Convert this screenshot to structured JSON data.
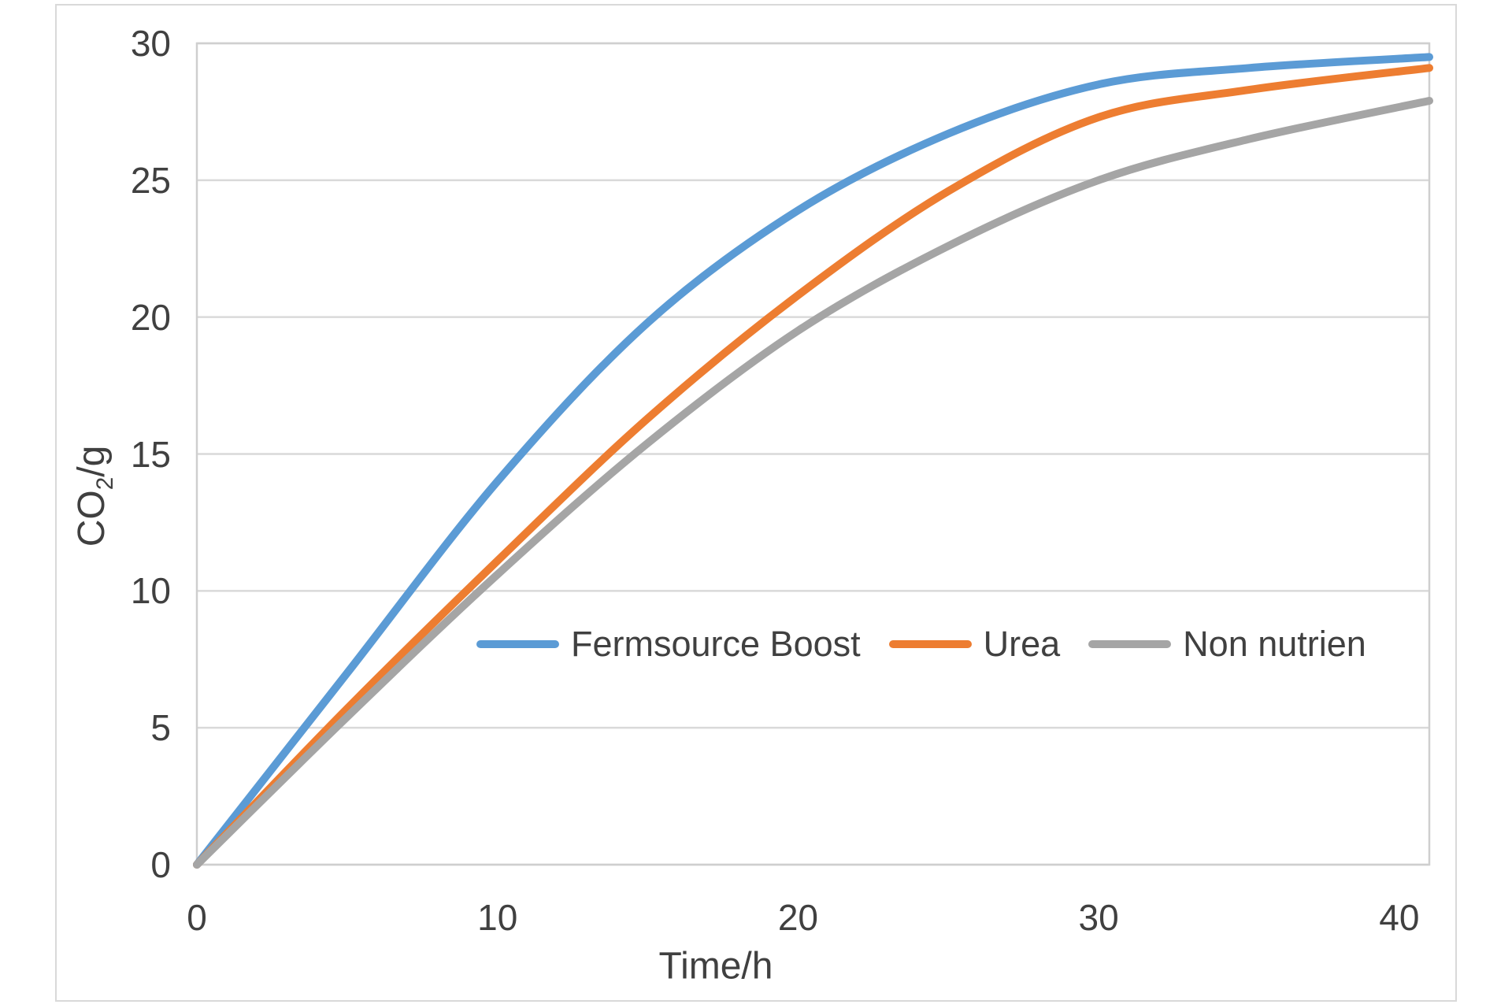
{
  "chart_data": {
    "type": "line",
    "title": "",
    "xlabel": "Time/h",
    "ylabel": {
      "main": "CO",
      "sub": "2",
      "rest": "/g"
    },
    "xlim": [
      0,
      41
    ],
    "ylim": [
      0,
      30
    ],
    "xticks": [
      0,
      10,
      20,
      30,
      40
    ],
    "yticks": [
      0,
      5,
      10,
      15,
      20,
      25,
      30
    ],
    "grid": "horizontal-only",
    "legend_position": "inside-plot-middle",
    "x_hours": [
      0,
      5,
      10,
      15,
      20,
      25,
      30,
      35,
      41
    ],
    "series": [
      {
        "name": "Fermsource Boost",
        "color": "#5B9BD5",
        "values": [
          0,
          7.0,
          14.0,
          19.8,
          23.9,
          26.7,
          28.5,
          29.1,
          29.5
        ]
      },
      {
        "name": "Urea",
        "color": "#ED7D31",
        "values": [
          0,
          5.7,
          11.1,
          16.3,
          20.8,
          24.6,
          27.3,
          28.3,
          29.1
        ]
      },
      {
        "name": "Non nutrien",
        "color": "#A5A5A5",
        "values": [
          0,
          5.4,
          10.6,
          15.4,
          19.5,
          22.6,
          25.0,
          26.5,
          27.9
        ]
      }
    ],
    "colors": {
      "gridline": "#D9D9D9",
      "plot_border": "#CFCFCF",
      "outer_frame": "#D9D9D9",
      "text": "#404040",
      "background": "#FFFFFF"
    }
  }
}
